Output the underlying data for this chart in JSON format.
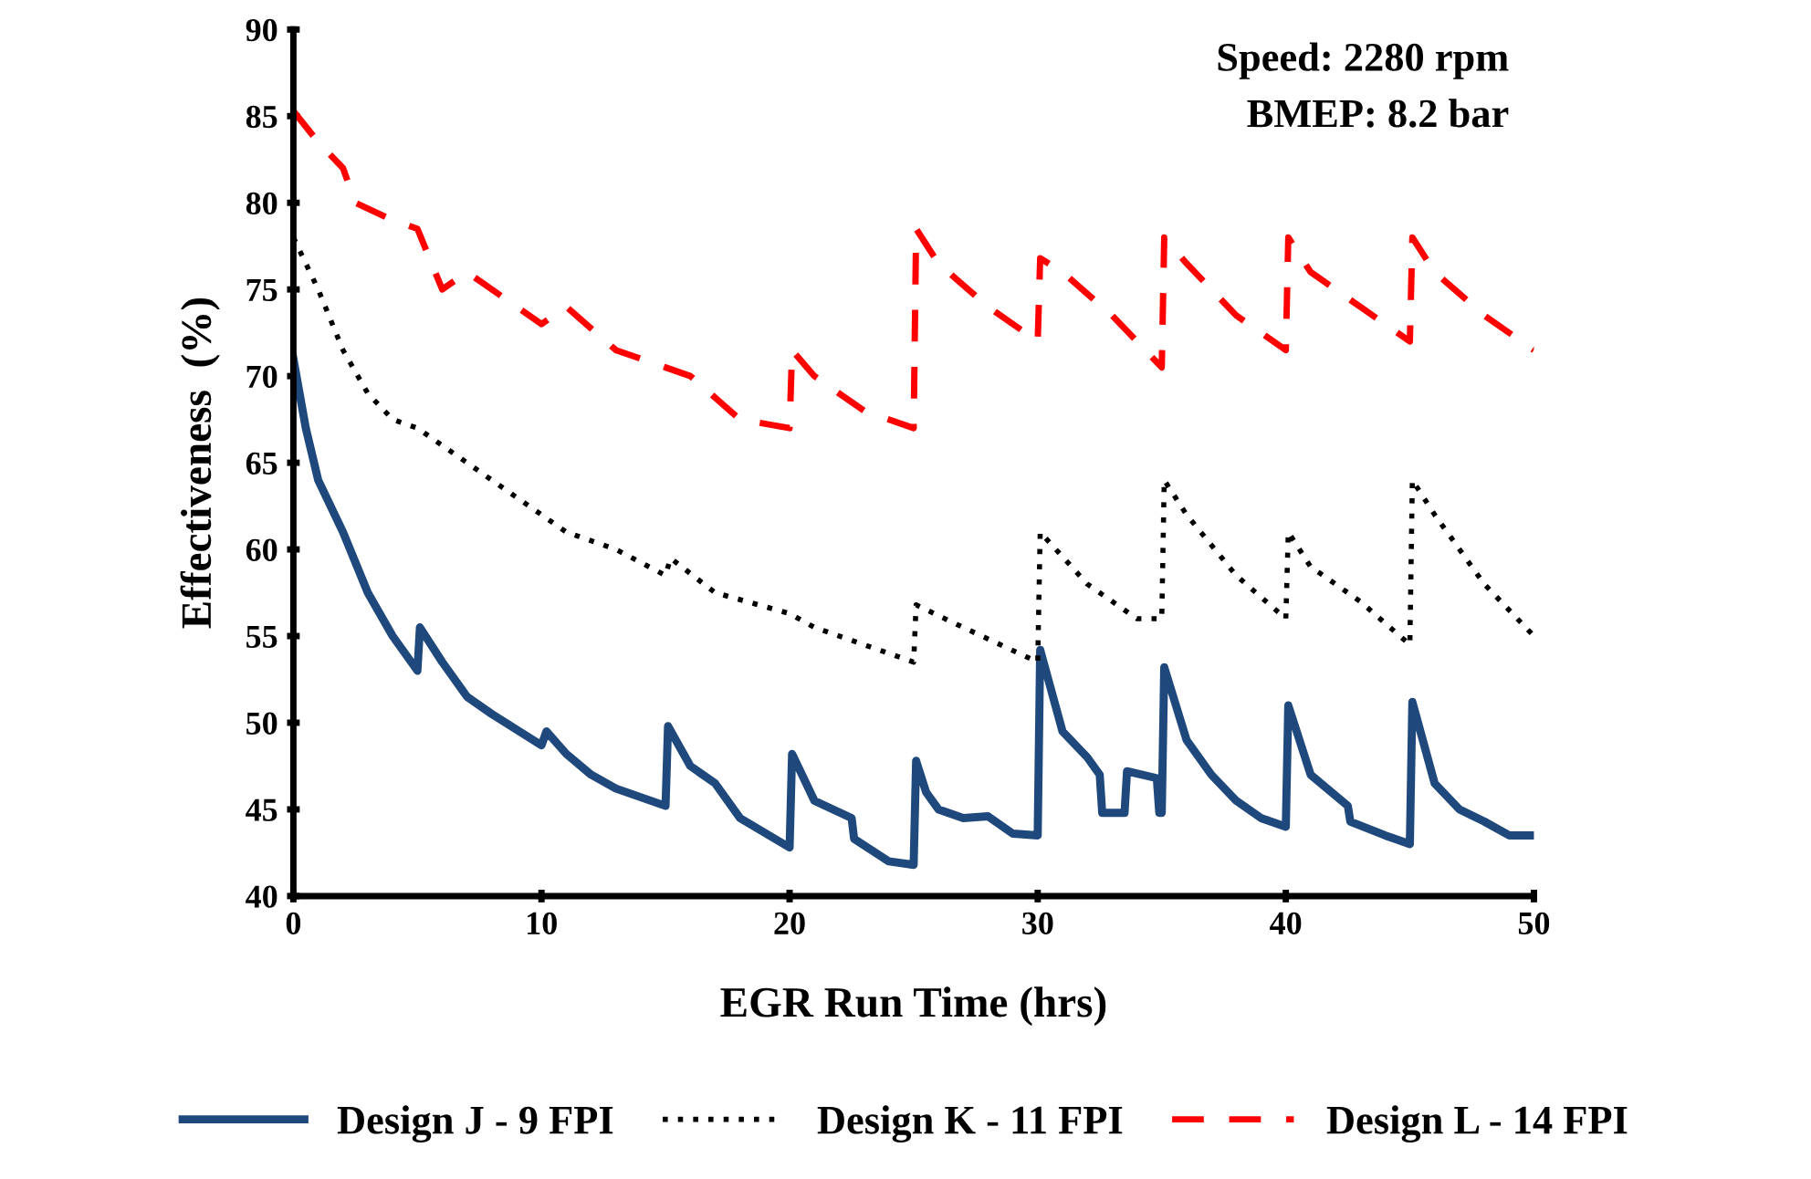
{
  "chart_data": {
    "type": "line",
    "xlabel": "EGR Run Time (hrs)",
    "ylabel": "Effectiveness  (%)",
    "annotations": [
      "Speed: 2280 rpm",
      "BMEP: 8.2 bar"
    ],
    "xlim": [
      0,
      50
    ],
    "xticks": [
      0,
      10,
      20,
      30,
      40,
      50
    ],
    "ylim": [
      40,
      90
    ],
    "yticks": [
      40,
      45,
      50,
      55,
      60,
      65,
      70,
      75,
      80,
      85,
      90
    ],
    "grid": false,
    "legend": "bottom",
    "series": [
      {
        "name": "Design J - 9 FPI",
        "color": "#1f497d",
        "line_style": "solid",
        "x": [
          0,
          0.5,
          1,
          2,
          3,
          4,
          5,
          5.1,
          6,
          7,
          8,
          10,
          10.2,
          11,
          12,
          13,
          15,
          15.1,
          16,
          17,
          18,
          20,
          20.1,
          21,
          22.5,
          22.6,
          24,
          25,
          25.1,
          25.5,
          26,
          27,
          28,
          29,
          30,
          30.1,
          31,
          32,
          32.5,
          32.6,
          33.5,
          33.6,
          34.8,
          34.9,
          35,
          35.1,
          36,
          37,
          38,
          39,
          40,
          40.1,
          41,
          42.5,
          42.6,
          44,
          45,
          45.1,
          46,
          47,
          48,
          49,
          50
        ],
        "values": [
          71,
          67,
          64,
          61,
          57.5,
          55,
          53,
          55.5,
          53.5,
          51.5,
          50.5,
          48.7,
          49.5,
          48.2,
          47,
          46.2,
          45.2,
          49.8,
          47.5,
          46.5,
          44.5,
          42.8,
          48.2,
          45.5,
          44.5,
          43.3,
          42,
          41.8,
          47.8,
          46,
          45,
          44.5,
          44.6,
          43.6,
          43.5,
          54.2,
          49.5,
          48,
          47,
          44.8,
          44.8,
          47.2,
          46.8,
          44.8,
          44.8,
          53.2,
          49,
          47,
          45.5,
          44.5,
          44,
          51,
          47,
          45.2,
          44.3,
          43.5,
          43,
          51.2,
          46.5,
          45,
          44.3,
          43.5,
          43.5
        ]
      },
      {
        "name": "Design K - 11 FPI",
        "color": "#000000",
        "line_style": "dotted",
        "x": [
          0,
          1,
          2,
          3,
          4,
          5,
          7,
          9,
          10,
          11,
          13,
          15,
          15.2,
          17,
          20,
          21,
          23,
          25,
          25.1,
          27,
          30,
          30.1,
          32,
          34,
          35,
          35.1,
          36,
          38,
          40,
          40.1,
          41,
          43,
          45,
          45.1,
          46,
          48,
          50
        ],
        "values": [
          78,
          75,
          71.5,
          69,
          67.5,
          67,
          65,
          63,
          62,
          61,
          60,
          58.5,
          59.5,
          57.5,
          56.3,
          55.5,
          54.5,
          53.5,
          56.8,
          55.5,
          53.5,
          61,
          58,
          56,
          56,
          64,
          62,
          58.5,
          56,
          61,
          59,
          57,
          54.5,
          64,
          62,
          58,
          55
        ]
      },
      {
        "name": "Design L - 14 FPI",
        "color": "#ff0000",
        "line_style": "dashed",
        "x": [
          0,
          1,
          2,
          2.5,
          4,
          5,
          6,
          7,
          9,
          10,
          11,
          13,
          15,
          16,
          18,
          20,
          20.1,
          21,
          23,
          25,
          25.1,
          26,
          28,
          30,
          30.1,
          31,
          33,
          35,
          35.1,
          36,
          38,
          40,
          40.1,
          41,
          43,
          45,
          45.1,
          46,
          48,
          50
        ],
        "values": [
          85.3,
          83.5,
          82,
          80,
          79,
          78.5,
          75,
          76,
          74,
          73,
          74,
          71.5,
          70.5,
          70,
          67.5,
          67,
          71.5,
          70,
          68,
          67,
          78.5,
          76.5,
          74,
          72,
          76.8,
          76,
          73.5,
          70.5,
          78,
          76.5,
          73.5,
          71.5,
          78,
          76,
          74,
          72,
          78,
          76,
          73.5,
          71.5
        ]
      }
    ]
  }
}
